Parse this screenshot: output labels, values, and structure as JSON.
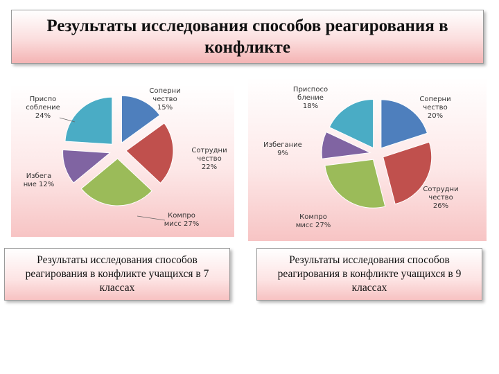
{
  "title": "Результаты исследования способов реагирования в конфликте",
  "colors": {
    "adaptation": "#4aacc5",
    "rivalry": "#4e7fbd",
    "cooperation": "#c0504d",
    "compromise": "#9bbb59",
    "avoidance": "#8064a2"
  },
  "chart_data": [
    {
      "type": "pie",
      "categories": [
        "Соперничество",
        "Сотрудничество",
        "Компромисс",
        "Избегание",
        "Приспособление"
      ],
      "values": [
        15,
        22,
        27,
        12,
        24
      ],
      "labels": [
        [
          "Соперни",
          "чество",
          "15%"
        ],
        [
          "Сотрудни",
          "чество",
          "22%"
        ],
        [
          "Компро",
          "мисс 27%"
        ],
        [
          "Избега",
          "ние 12%"
        ],
        [
          "Приспо",
          "собление",
          "24%"
        ]
      ],
      "caption": "Результаты исследования способов реагирования в конфликте учащихся в 7 классах"
    },
    {
      "type": "pie",
      "categories": [
        "Соперничество",
        "Сотрудничество",
        "Компромисс",
        "Избегание",
        "Приспособление"
      ],
      "values": [
        20,
        26,
        27,
        9,
        18
      ],
      "labels": [
        [
          "Соперни",
          "чество",
          "20%"
        ],
        [
          "Сотрудни",
          "чество",
          "26%"
        ],
        [
          "Компро",
          "мисс 27%"
        ],
        [
          "Избегание",
          "9%"
        ],
        [
          "Приспосо",
          "бление",
          "18%"
        ]
      ],
      "caption": "Результаты исследования способов реагирования в конфликте учащихся в 9 классах"
    }
  ]
}
